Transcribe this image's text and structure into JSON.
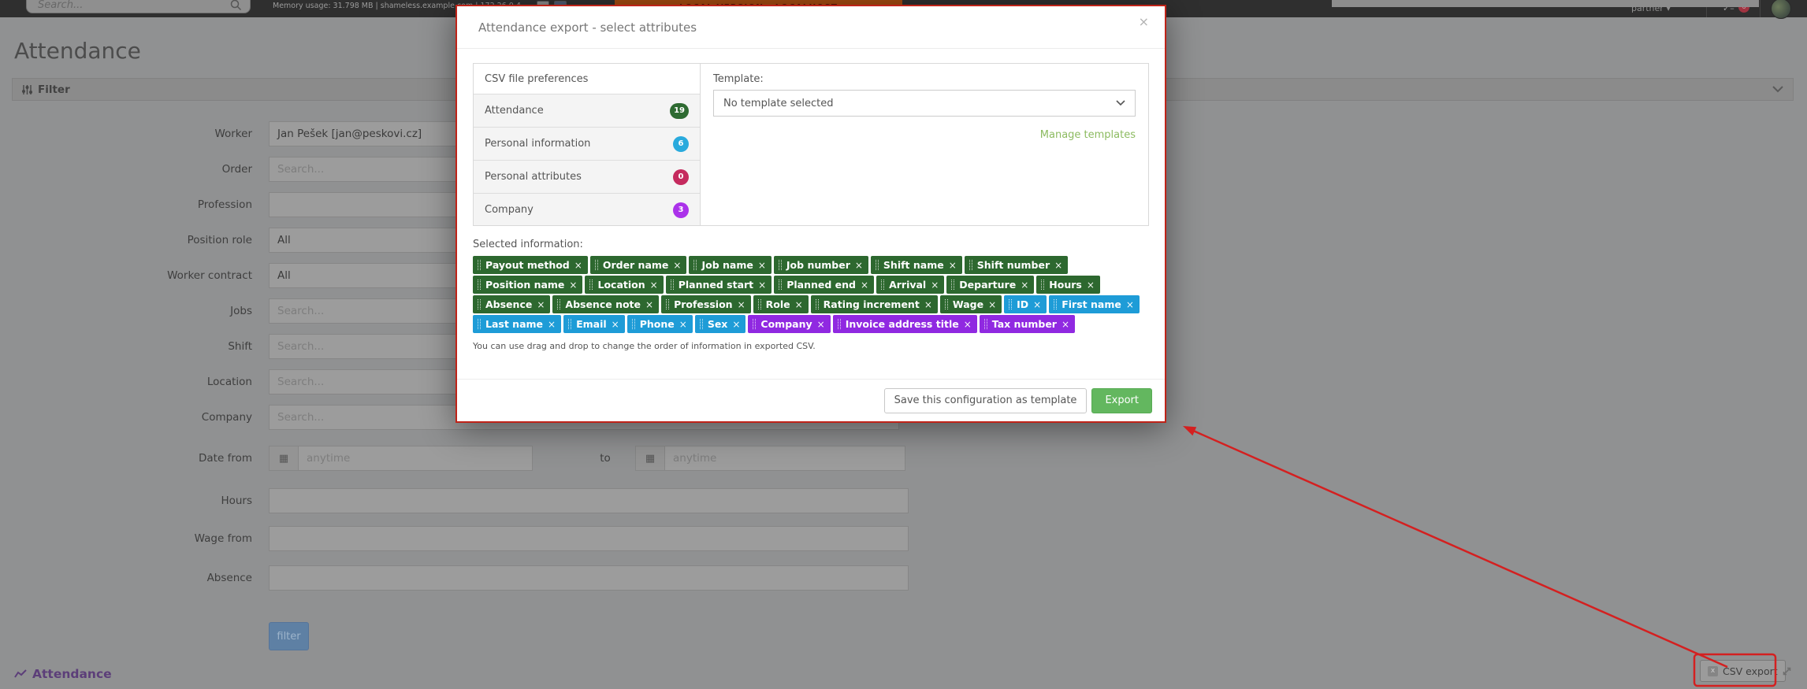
{
  "colors": {
    "tag_green": "#2d682f",
    "tag_blue": "#1e9cd7",
    "tag_purple": "#9029e1",
    "badge_green": "#2e6b32",
    "badge_blue": "#29aadd",
    "badge_crimson": "#c52a5e",
    "badge_purple": "#ab32ea",
    "export_green": "#63b75f",
    "link_green": "#8cbb60",
    "annotation_red": "#bf2318"
  },
  "topbar": {
    "search_placeholder": "Search...",
    "memory_text": "Memory usage: 31.798 MB | shameless.example.com | 172.26.0.4",
    "banner": "LOCAL VERSION - LOCALHOST",
    "partner_label": "partner",
    "check_glyph": "✓–",
    "notification_count": "6"
  },
  "page": {
    "title": "Attendance",
    "filter_panel_title": "Filter",
    "to_label": "to",
    "filter_button_label": "filter",
    "section_title": "Attendance",
    "csv_export_label": "CSV export",
    "csv_icon_glyph": "x"
  },
  "filter": {
    "rows": [
      {
        "label": "Worker",
        "value": "Jan Pešek [jan@peskovi.cz]"
      },
      {
        "label": "Order",
        "placeholder": "Search..."
      },
      {
        "label": "Profession"
      },
      {
        "label": "Position role",
        "value": "All"
      },
      {
        "label": "Worker contract",
        "value": "All"
      },
      {
        "label": "Jobs",
        "placeholder": "Search..."
      },
      {
        "label": "Shift",
        "placeholder": "Search..."
      },
      {
        "label": "Location",
        "placeholder": "Search...",
        "caret": true
      },
      {
        "label": "Company",
        "placeholder": "Search...",
        "caret": true
      },
      {
        "label": "Hours"
      },
      {
        "label": "Wage from"
      },
      {
        "label": "Absence"
      }
    ],
    "date_row": {
      "label": "Date from",
      "from_placeholder": "anytime",
      "to_placeholder": "anytime",
      "calendar_glyph": "▦"
    }
  },
  "modal": {
    "title": "Attendance export - select attributes",
    "close_glyph": "×",
    "preferences": {
      "header": "CSV file preferences",
      "items": [
        {
          "label": "Attendance",
          "count": "19",
          "color": "#2e6b32"
        },
        {
          "label": "Personal information",
          "count": "6",
          "color": "#29aadd"
        },
        {
          "label": "Personal attributes",
          "count": "0",
          "color": "#c52a5e"
        },
        {
          "label": "Company",
          "count": "3",
          "color": "#ab32ea"
        }
      ]
    },
    "template": {
      "label": "Template:",
      "selected": "No template selected",
      "manage_link": "Manage templates"
    },
    "selected": {
      "label": "Selected information:",
      "remove_glyph": "×",
      "tags": [
        {
          "label": "Payout method",
          "color": "green"
        },
        {
          "label": "Order name",
          "color": "green"
        },
        {
          "label": "Job name",
          "color": "green"
        },
        {
          "label": "Job number",
          "color": "green"
        },
        {
          "label": "Shift name",
          "color": "green"
        },
        {
          "label": "Shift number",
          "color": "green"
        },
        {
          "label": "Position name",
          "color": "green"
        },
        {
          "label": "Location",
          "color": "green"
        },
        {
          "label": "Planned start",
          "color": "green"
        },
        {
          "label": "Planned end",
          "color": "green"
        },
        {
          "label": "Arrival",
          "color": "green"
        },
        {
          "label": "Departure",
          "color": "green"
        },
        {
          "label": "Hours",
          "color": "green"
        },
        {
          "label": "Absence",
          "color": "green"
        },
        {
          "label": "Absence note",
          "color": "green"
        },
        {
          "label": "Profession",
          "color": "green"
        },
        {
          "label": "Role",
          "color": "green"
        },
        {
          "label": "Rating increment",
          "color": "green"
        },
        {
          "label": "Wage",
          "color": "green"
        },
        {
          "label": "ID",
          "color": "blue"
        },
        {
          "label": "First name",
          "color": "blue"
        },
        {
          "label": "Last name",
          "color": "blue"
        },
        {
          "label": "Email",
          "color": "blue"
        },
        {
          "label": "Phone",
          "color": "blue"
        },
        {
          "label": "Sex",
          "color": "blue"
        },
        {
          "label": "Company",
          "color": "purple"
        },
        {
          "label": "Invoice address title",
          "color": "purple"
        },
        {
          "label": "Tax number",
          "color": "purple"
        }
      ],
      "note": "You can use drag and drop to change the order of information in exported CSV."
    },
    "footer": {
      "save_label": "Save this configuration as template",
      "export_label": "Export"
    }
  }
}
